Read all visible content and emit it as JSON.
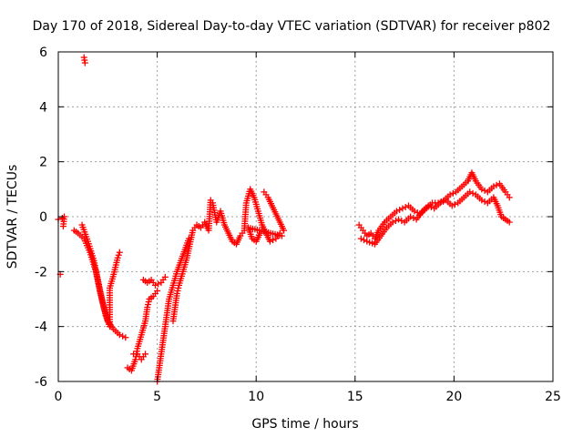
{
  "chart_data": {
    "type": "scatter",
    "title": "Day 170 of 2018, Sidereal Day-to-day VTEC variation (SDTVAR) for receiver p802",
    "xlabel": "GPS time / hours",
    "ylabel": "SDTVAR / TECUs",
    "xlim": [
      0,
      25
    ],
    "ylim": [
      -6,
      6
    ],
    "xticks": [
      "0",
      "5",
      "10",
      "15",
      "20",
      "25"
    ],
    "yticks": [
      "-6",
      "-4",
      "-2",
      "0",
      "2",
      "4",
      "6"
    ],
    "grid": true,
    "marker": "plus",
    "color": "#ff0000",
    "series": [
      {
        "name": "SDTVAR",
        "trace": [
          [
            0.0,
            -0.1
          ],
          [
            0.2,
            -0.05
          ],
          [
            0.3,
            0.0
          ],
          [
            0.25,
            -0.35
          ],
          [
            0.1,
            -2.1
          ],
          [
            1.3,
            5.8
          ],
          [
            1.35,
            5.6
          ],
          [
            0.8,
            -0.5
          ],
          [
            1.0,
            -0.6
          ],
          [
            1.3,
            -0.8
          ],
          [
            1.6,
            -1.3
          ],
          [
            1.9,
            -2.0
          ],
          [
            2.1,
            -2.7
          ],
          [
            2.3,
            -3.3
          ],
          [
            2.5,
            -3.8
          ],
          [
            2.8,
            -4.1
          ],
          [
            3.1,
            -4.3
          ],
          [
            3.4,
            -4.4
          ],
          [
            1.2,
            -0.3
          ],
          [
            1.5,
            -0.9
          ],
          [
            1.8,
            -1.6
          ],
          [
            2.0,
            -2.3
          ],
          [
            2.2,
            -3.0
          ],
          [
            2.4,
            -3.6
          ],
          [
            2.6,
            -4.0
          ],
          [
            2.6,
            -2.6
          ],
          [
            2.8,
            -2.1
          ],
          [
            3.0,
            -1.5
          ],
          [
            3.1,
            -1.3
          ],
          [
            3.5,
            -5.5
          ],
          [
            3.7,
            -5.6
          ],
          [
            3.9,
            -5.2
          ],
          [
            4.0,
            -4.8
          ],
          [
            4.2,
            -4.3
          ],
          [
            4.4,
            -3.8
          ],
          [
            4.5,
            -3.3
          ],
          [
            4.6,
            -3.0
          ],
          [
            4.8,
            -2.9
          ],
          [
            5.0,
            -2.7
          ],
          [
            3.8,
            -5.0
          ],
          [
            4.0,
            -5.0
          ],
          [
            4.2,
            -5.2
          ],
          [
            4.4,
            -5.0
          ],
          [
            4.3,
            -2.3
          ],
          [
            4.5,
            -2.4
          ],
          [
            4.7,
            -2.3
          ],
          [
            4.9,
            -2.5
          ],
          [
            5.2,
            -2.4
          ],
          [
            5.4,
            -2.2
          ],
          [
            5.0,
            -6.0
          ],
          [
            5.1,
            -5.5
          ],
          [
            5.2,
            -5.0
          ],
          [
            5.3,
            -4.5
          ],
          [
            5.4,
            -4.0
          ],
          [
            5.5,
            -3.5
          ],
          [
            5.6,
            -3.0
          ],
          [
            5.8,
            -2.5
          ],
          [
            6.0,
            -2.0
          ],
          [
            6.2,
            -1.6
          ],
          [
            6.4,
            -1.2
          ],
          [
            6.6,
            -0.8
          ],
          [
            5.8,
            -3.8
          ],
          [
            5.9,
            -3.3
          ],
          [
            6.0,
            -2.8
          ],
          [
            6.1,
            -2.5
          ],
          [
            6.3,
            -2.0
          ],
          [
            6.5,
            -1.5
          ],
          [
            6.8,
            -0.5
          ],
          [
            7.0,
            -0.3
          ],
          [
            7.2,
            -0.4
          ],
          [
            7.4,
            -0.2
          ],
          [
            7.6,
            -0.5
          ],
          [
            7.7,
            0.6
          ],
          [
            7.8,
            0.5
          ],
          [
            8.0,
            -0.2
          ],
          [
            8.2,
            0.2
          ],
          [
            8.4,
            -0.3
          ],
          [
            8.6,
            -0.6
          ],
          [
            8.8,
            -0.9
          ],
          [
            9.0,
            -1.0
          ],
          [
            9.2,
            -0.7
          ],
          [
            9.4,
            -0.5
          ],
          [
            9.5,
            0.5
          ],
          [
            9.7,
            1.0
          ],
          [
            9.9,
            0.7
          ],
          [
            10.1,
            0.2
          ],
          [
            10.3,
            -0.3
          ],
          [
            10.5,
            -0.6
          ],
          [
            10.7,
            -0.9
          ],
          [
            11.0,
            -0.8
          ],
          [
            11.2,
            -0.6
          ],
          [
            11.3,
            -0.7
          ],
          [
            9.6,
            -0.4
          ],
          [
            9.8,
            -0.8
          ],
          [
            10.0,
            -0.9
          ],
          [
            10.2,
            -0.6
          ],
          [
            10.4,
            0.9
          ],
          [
            10.6,
            0.7
          ],
          [
            10.8,
            0.4
          ],
          [
            11.0,
            0.1
          ],
          [
            11.2,
            -0.2
          ],
          [
            11.4,
            -0.5
          ],
          [
            15.2,
            -0.3
          ],
          [
            15.4,
            -0.5
          ],
          [
            15.6,
            -0.7
          ],
          [
            15.8,
            -0.6
          ],
          [
            16.0,
            -0.8
          ],
          [
            16.2,
            -0.5
          ],
          [
            16.5,
            -0.2
          ],
          [
            16.8,
            0.0
          ],
          [
            17.1,
            0.2
          ],
          [
            17.4,
            0.3
          ],
          [
            17.7,
            0.4
          ],
          [
            18.0,
            0.2
          ],
          [
            18.3,
            0.1
          ],
          [
            18.6,
            0.3
          ],
          [
            18.9,
            0.5
          ],
          [
            19.2,
            0.5
          ],
          [
            19.5,
            0.6
          ],
          [
            19.8,
            0.8
          ],
          [
            20.1,
            0.9
          ],
          [
            20.4,
            1.1
          ],
          [
            20.7,
            1.3
          ],
          [
            20.9,
            1.6
          ],
          [
            21.1,
            1.3
          ],
          [
            21.4,
            1.0
          ],
          [
            21.7,
            0.9
          ],
          [
            22.0,
            1.1
          ],
          [
            22.3,
            1.2
          ],
          [
            22.6,
            0.9
          ],
          [
            22.8,
            0.7
          ],
          [
            15.3,
            -0.8
          ],
          [
            15.6,
            -0.9
          ],
          [
            16.0,
            -1.0
          ],
          [
            16.3,
            -0.7
          ],
          [
            16.6,
            -0.4
          ],
          [
            16.9,
            -0.2
          ],
          [
            17.2,
            -0.1
          ],
          [
            17.5,
            -0.2
          ],
          [
            17.8,
            0.0
          ],
          [
            18.1,
            -0.1
          ],
          [
            18.4,
            0.2
          ],
          [
            18.7,
            0.4
          ],
          [
            19.0,
            0.3
          ],
          [
            19.3,
            0.5
          ],
          [
            19.6,
            0.6
          ],
          [
            19.9,
            0.4
          ],
          [
            20.2,
            0.5
          ],
          [
            20.5,
            0.7
          ],
          [
            20.8,
            0.9
          ],
          [
            21.1,
            0.8
          ],
          [
            21.4,
            0.6
          ],
          [
            21.7,
            0.5
          ],
          [
            22.0,
            0.7
          ],
          [
            22.2,
            0.4
          ],
          [
            22.4,
            0.0
          ],
          [
            22.6,
            -0.1
          ],
          [
            22.8,
            -0.2
          ]
        ]
      }
    ]
  }
}
